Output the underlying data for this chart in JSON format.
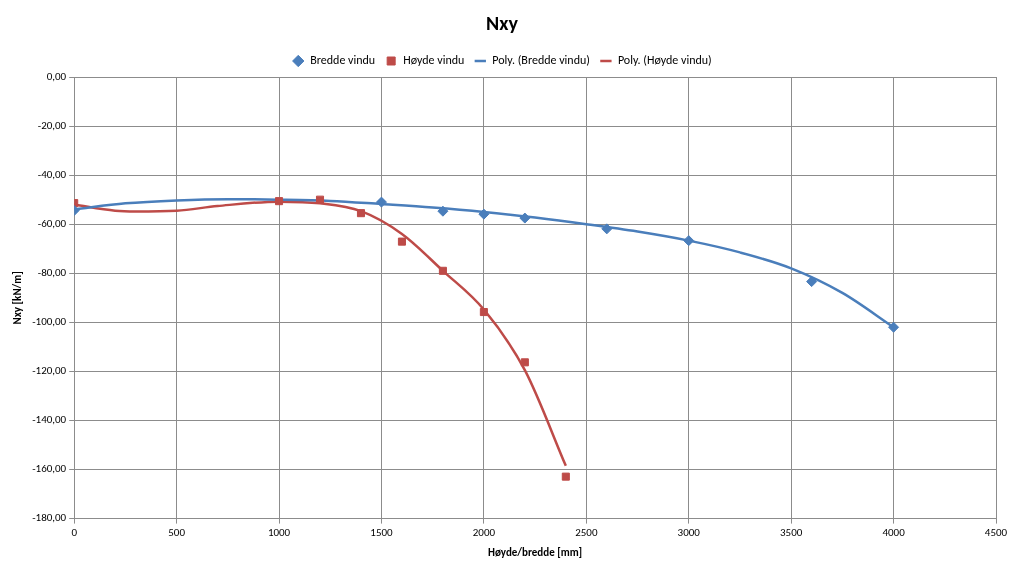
{
  "chart_data": {
    "type": "scatter",
    "title": "Nxy",
    "xlabel": "Høyde/bredde [mm]",
    "ylabel": "Nxy [kN/m]",
    "legend": "top",
    "grid": true,
    "xlim": [
      0,
      4500
    ],
    "xticks": [
      0,
      500,
      1000,
      1500,
      2000,
      2500,
      3000,
      3500,
      4000,
      4500
    ],
    "ylim": [
      -180,
      0
    ],
    "yticks": [
      {
        "value": -180,
        "label": "-180,00"
      },
      {
        "value": -160,
        "label": "-160,00"
      },
      {
        "value": -140,
        "label": "-140,00"
      },
      {
        "value": -120,
        "label": "-120,00"
      },
      {
        "value": -100,
        "label": "-100,00"
      },
      {
        "value": -80,
        "label": "-80,00"
      },
      {
        "value": -60,
        "label": "-60,00"
      },
      {
        "value": -40,
        "label": "-40,00"
      },
      {
        "value": -20,
        "label": "-20,00"
      },
      {
        "value": 0,
        "label": "0,00"
      }
    ],
    "series": [
      {
        "name": "Bredde vindu",
        "type": "scatter",
        "marker": "diamond",
        "color": "#4a7ebb",
        "x": [
          0,
          1500,
          1800,
          2000,
          2200,
          2600,
          3000,
          3600,
          4000
        ],
        "values": [
          -54.4,
          -51,
          -54.7,
          -55.9,
          -57.5,
          -61.9,
          -66.7,
          -83.4,
          -102
        ]
      },
      {
        "name": "Høyde vindu",
        "type": "scatter",
        "marker": "square",
        "color": "#be4b48",
        "x": [
          0,
          1000,
          1200,
          1400,
          1600,
          1800,
          2000,
          2200,
          2400
        ],
        "values": [
          -51.4,
          -50.6,
          -50,
          -55.5,
          -67.1,
          -79,
          -95.8,
          -116.3,
          -162.9
        ]
      },
      {
        "name": "Poly. (Bredde vindu)",
        "type": "line",
        "marker": "none",
        "line_style": "solid",
        "color": "#4a7ebb",
        "x": [
          0,
          250,
          500,
          750,
          1000,
          1250,
          1500,
          1750,
          2000,
          2250,
          2500,
          2750,
          3000,
          3250,
          3500,
          3750,
          4000
        ],
        "values": [
          -54,
          -51.5,
          -50.3,
          -49.8,
          -50,
          -50.5,
          -51.8,
          -53.2,
          -55,
          -57.3,
          -60,
          -63,
          -66.7,
          -71.5,
          -78,
          -88,
          -102
        ]
      },
      {
        "name": "Poly. (Høyde vindu)",
        "type": "line",
        "marker": "none",
        "line_style": "solid",
        "color": "#be4b48",
        "x": [
          0,
          200,
          300,
          500,
          700,
          1000,
          1200,
          1400,
          1600,
          1800,
          2000,
          2200,
          2400
        ],
        "values": [
          -52,
          -54.5,
          -54.8,
          -54.5,
          -52.6,
          -50.8,
          -51.5,
          -54.7,
          -64,
          -79,
          -94.8,
          -119.5,
          -158.5
        ]
      }
    ]
  }
}
